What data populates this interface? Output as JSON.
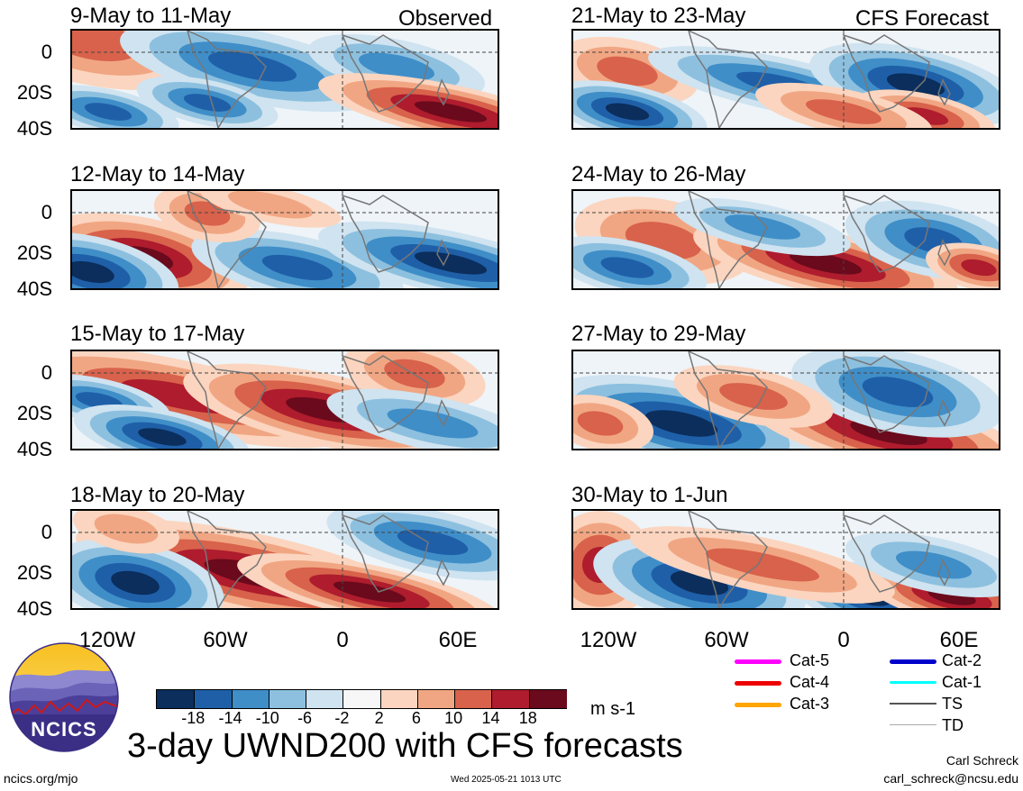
{
  "obs_label": "Observed",
  "fc_label": "CFS Forecast",
  "panels": {
    "left": [
      "9-May to 11-May",
      "12-May to 14-May",
      "15-May to 17-May",
      "18-May to 20-May"
    ],
    "right": [
      "21-May to 23-May",
      "24-May to 26-May",
      "27-May to 29-May",
      "30-May to 1-Jun"
    ]
  },
  "y_ticks": [
    "0",
    "20S",
    "40S"
  ],
  "x_ticks": [
    "120W",
    "60W",
    "0",
    "60E"
  ],
  "colorbar": {
    "colors": [
      "#0b2e5c",
      "#1f5fa8",
      "#3f8ec8",
      "#8dc0df",
      "#cfe3f0",
      "#f7f7f7",
      "#fbd5bf",
      "#f1a683",
      "#d8624b",
      "#ae1c2d",
      "#6a0a1c"
    ],
    "ticks": [
      "-18",
      "-14",
      "-10",
      "-6",
      "-2",
      "2",
      "6",
      "10",
      "14",
      "18"
    ],
    "unit": "m s-1"
  },
  "storm_legend": [
    {
      "label": "Cat-5",
      "color": "#ff00ff"
    },
    {
      "label": "Cat-4",
      "color": "#ee0000"
    },
    {
      "label": "Cat-3",
      "color": "#ffa500"
    },
    {
      "label": "Cat-2",
      "color": "#0000cc"
    },
    {
      "label": "Cat-1",
      "color": "#00ffff"
    },
    {
      "label": "TS",
      "color": "#555555"
    },
    {
      "label": "TD",
      "color": "#aaaaaa"
    }
  ],
  "logo_text": "NCICS",
  "main_title": "3-day UWND200 with CFS forecasts",
  "footer": {
    "site": "ncics.org/mjo",
    "timestamp": "Wed 2025-05-21 1013 UTC",
    "author": "Carl Schreck",
    "email": "carl_schreck@ncsu.edu"
  }
}
